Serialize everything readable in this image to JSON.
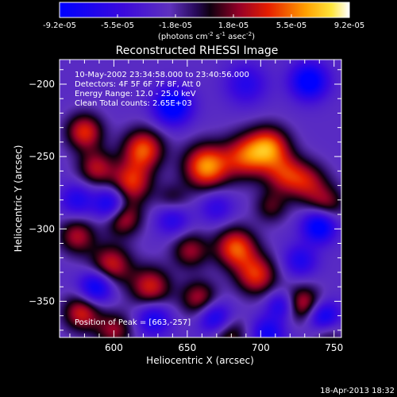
{
  "chart_data": {
    "type": "heatmap",
    "title": "Reconstructed RHESSI Image",
    "xlabel": "Heliocentric X (arcsec)",
    "ylabel": "Heliocentric Y (arcsec)",
    "xlim": [
      563,
      755
    ],
    "ylim": [
      -375,
      -183
    ],
    "x_ticks": [
      600,
      650,
      700,
      750
    ],
    "y_ticks": [
      -200,
      -250,
      -300,
      -350
    ],
    "colorbar": {
      "ticks": [
        "-9.2e-05",
        "-5.5e-05",
        "-1.8e-05",
        "1.8e-05",
        "5.5e-05",
        "9.2e-05"
      ],
      "min": -9.2e-05,
      "max": 9.2e-05,
      "unit_label": "(photons cm",
      "unit_exp1": "-2",
      "unit_mid": " s",
      "unit_exp2": "-1",
      "unit_mid2": " asec",
      "unit_exp3": "-2",
      "unit_end": ")",
      "colormap": "RHESSI std gamma (blue-purple-red-yellow-white)"
    },
    "info_lines": [
      "10-May-2002 23:34:58.000 to 23:40:56.000",
      "Detectors: 4F 5F 6F 7F 8F, Att 0",
      "Energy Range: 12.0 - 25.0 keV",
      "Clean     Total counts: 2.65E+03"
    ],
    "peak_label": "Position of Peak = [663,-257]",
    "peak": {
      "x": 663,
      "y": -257,
      "value": 9.2e-05
    },
    "blobs": [
      {
        "x": 663,
        "y": -257,
        "amp": 1.0,
        "s": 11
      },
      {
        "x": 690,
        "y": -250,
        "amp": 0.75,
        "s": 11
      },
      {
        "x": 706,
        "y": -243,
        "amp": 0.8,
        "s": 10
      },
      {
        "x": 716,
        "y": -262,
        "amp": 0.6,
        "s": 10
      },
      {
        "x": 732,
        "y": -268,
        "amp": 0.55,
        "s": 10
      },
      {
        "x": 745,
        "y": -283,
        "amp": 0.5,
        "s": 9
      },
      {
        "x": 620,
        "y": -245,
        "amp": 0.85,
        "s": 10
      },
      {
        "x": 612,
        "y": -268,
        "amp": 0.75,
        "s": 10
      },
      {
        "x": 606,
        "y": -292,
        "amp": 0.7,
        "s": 9
      },
      {
        "x": 580,
        "y": -233,
        "amp": 0.75,
        "s": 9
      },
      {
        "x": 588,
        "y": -258,
        "amp": 0.6,
        "s": 9
      },
      {
        "x": 575,
        "y": -305,
        "amp": 0.6,
        "s": 9
      },
      {
        "x": 598,
        "y": -325,
        "amp": 0.7,
        "s": 10
      },
      {
        "x": 625,
        "y": -340,
        "amp": 0.7,
        "s": 10
      },
      {
        "x": 652,
        "y": -315,
        "amp": 0.55,
        "s": 9
      },
      {
        "x": 683,
        "y": -313,
        "amp": 0.85,
        "s": 10
      },
      {
        "x": 697,
        "y": -332,
        "amp": 0.75,
        "s": 10
      },
      {
        "x": 658,
        "y": -348,
        "amp": 0.6,
        "s": 9
      },
      {
        "x": 578,
        "y": -358,
        "amp": 0.7,
        "s": 9
      },
      {
        "x": 600,
        "y": -370,
        "amp": 0.55,
        "s": 9
      },
      {
        "x": 729,
        "y": -352,
        "amp": 0.7,
        "s": 9
      },
      {
        "x": 745,
        "y": -370,
        "amp": 0.55,
        "s": 8
      },
      {
        "x": 678,
        "y": -373,
        "amp": 0.5,
        "s": 9
      },
      {
        "x": 707,
        "y": -285,
        "amp": 0.4,
        "s": 8
      },
      {
        "x": 640,
        "y": -280,
        "amp": 0.35,
        "s": 8
      },
      {
        "x": 640,
        "y": -215,
        "amp": -0.9,
        "s": 9
      },
      {
        "x": 733,
        "y": -198,
        "amp": -0.85,
        "s": 9
      },
      {
        "x": 740,
        "y": -298,
        "amp": -0.9,
        "s": 8
      },
      {
        "x": 743,
        "y": -362,
        "amp": -0.95,
        "s": 8
      },
      {
        "x": 598,
        "y": -283,
        "amp": -0.8,
        "s": 8
      },
      {
        "x": 640,
        "y": -293,
        "amp": -0.5,
        "s": 8
      },
      {
        "x": 588,
        "y": -340,
        "amp": -0.8,
        "s": 8
      },
      {
        "x": 627,
        "y": -362,
        "amp": -0.6,
        "s": 8
      },
      {
        "x": 669,
        "y": -362,
        "amp": -0.7,
        "s": 8
      },
      {
        "x": 705,
        "y": -372,
        "amp": -0.6,
        "s": 8
      },
      {
        "x": 690,
        "y": -200,
        "amp": -0.45,
        "s": 10
      },
      {
        "x": 714,
        "y": -353,
        "amp": -0.55,
        "s": 7
      },
      {
        "x": 575,
        "y": -280,
        "amp": -0.5,
        "s": 8
      },
      {
        "x": 670,
        "y": -285,
        "amp": -0.4,
        "s": 8
      },
      {
        "x": 727,
        "y": -322,
        "amp": -0.5,
        "s": 8
      }
    ]
  },
  "footer": {
    "timestamp": "18-Apr-2013 18:32"
  }
}
